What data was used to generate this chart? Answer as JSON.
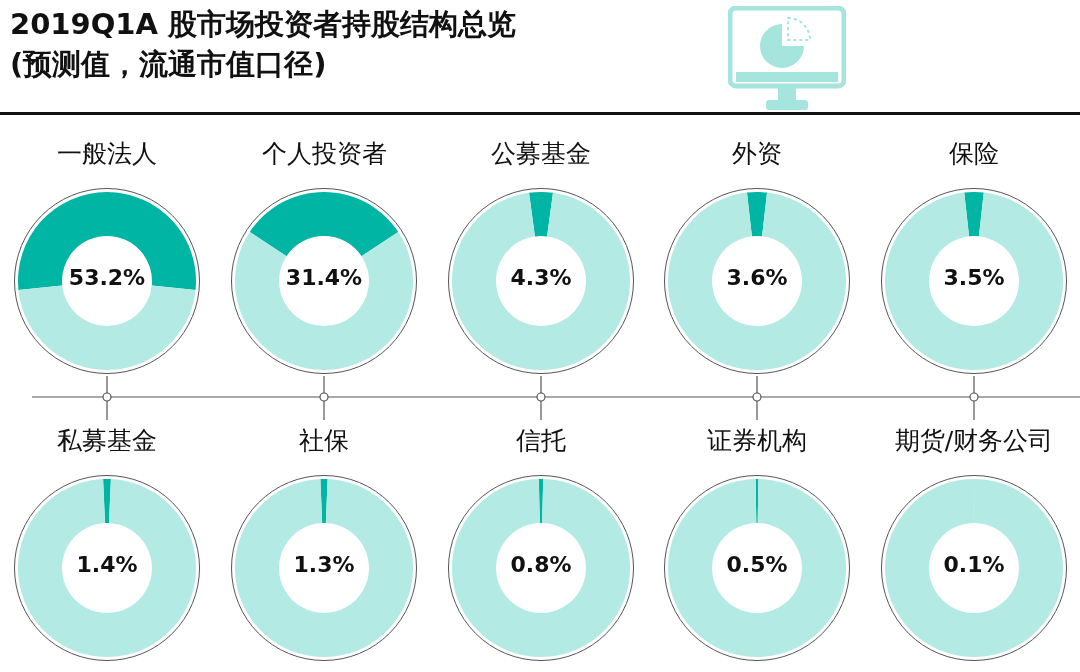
{
  "chart_data": [
    {
      "type": "other",
      "title": "2019Q1A 股市场投资者持股结构总览",
      "subtitle": "(预测值，流通市值口径)"
    },
    {
      "type": "donut",
      "title": "一般法人",
      "categories": [
        null,
        null
      ],
      "values": [
        53.2,
        46.8
      ],
      "colors": [
        "#00b5a3",
        "#b3eae3"
      ],
      "value_labels": [
        "53.2%",
        null
      ]
    },
    {
      "type": "donut",
      "title": "个人投资者",
      "categories": [
        null,
        null
      ],
      "values": [
        31.4,
        68.6
      ],
      "colors": [
        "#00b5a3",
        "#b3eae3"
      ],
      "value_labels": [
        "31.4%",
        null
      ]
    },
    {
      "type": "donut",
      "title": "公募基金",
      "categories": [
        null,
        null
      ],
      "values": [
        4.3,
        95.7
      ],
      "colors": [
        "#00b5a3",
        "#b3eae3"
      ],
      "value_labels": [
        "4.3%",
        null
      ]
    },
    {
      "type": "donut",
      "title": "外资",
      "categories": [
        null,
        null
      ],
      "values": [
        3.6,
        96.4
      ],
      "colors": [
        "#00b5a3",
        "#b3eae3"
      ],
      "value_labels": [
        "3.6%",
        null
      ]
    },
    {
      "type": "donut",
      "title": "保险",
      "categories": [
        null,
        null
      ],
      "values": [
        3.5,
        96.5
      ],
      "colors": [
        "#00b5a3",
        "#b3eae3"
      ],
      "value_labels": [
        "3.5%",
        null
      ]
    },
    {
      "type": "donut",
      "title": "私募基金",
      "categories": [
        null,
        null
      ],
      "values": [
        1.4,
        98.6
      ],
      "colors": [
        "#00b5a3",
        "#b3eae3"
      ],
      "value_labels": [
        "1.4%",
        null
      ]
    },
    {
      "type": "donut",
      "title": "社保",
      "categories": [
        null,
        null
      ],
      "values": [
        1.3,
        98.7
      ],
      "colors": [
        "#00b5a3",
        "#b3eae3"
      ],
      "value_labels": [
        "1.3%",
        null
      ]
    },
    {
      "type": "donut",
      "title": "信托",
      "categories": [
        null,
        null
      ],
      "values": [
        0.8,
        99.2
      ],
      "colors": [
        "#00b5a3",
        "#b3eae3"
      ],
      "value_labels": [
        "0.8%",
        null
      ]
    },
    {
      "type": "donut",
      "title": "证券机构",
      "categories": [
        null,
        null
      ],
      "values": [
        0.5,
        99.5
      ],
      "colors": [
        "#00b5a3",
        "#b3eae3"
      ],
      "value_labels": [
        "0.5%",
        null
      ]
    },
    {
      "type": "donut",
      "title": "期货/财务公司",
      "categories": [
        null,
        null
      ],
      "values": [
        0.1,
        99.9
      ],
      "colors": [
        "#00b5a3",
        "#b3eae3"
      ],
      "value_labels": [
        "0.1%",
        null
      ]
    }
  ]
}
